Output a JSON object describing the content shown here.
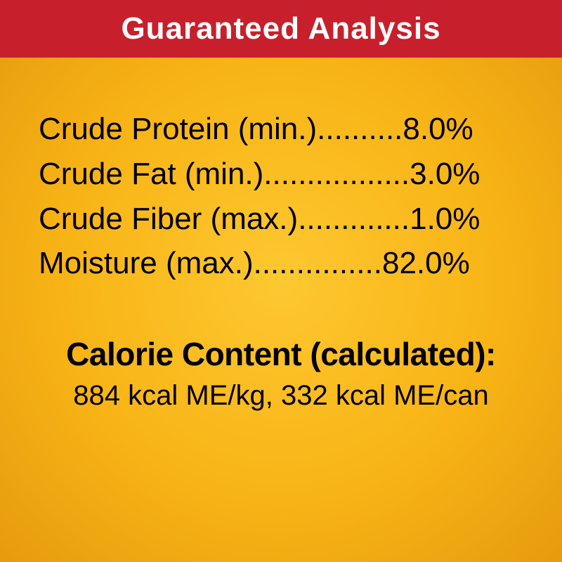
{
  "header": {
    "title": "Guaranteed Analysis",
    "background_color": "#c7202c",
    "text_color": "#ffffff",
    "fontsize": 44
  },
  "analysis": {
    "fontsize": 44,
    "text_color": "#000000",
    "rows": [
      {
        "label": "Crude Protein (min.)",
        "dots": "..........",
        "value": "8.0%"
      },
      {
        "label": "Crude Fat (min.)",
        "dots": ".................",
        "value": "3.0%"
      },
      {
        "label": "Crude Fiber (max.)",
        "dots": ".............",
        "value": "1.0%"
      },
      {
        "label": "Moisture (max.)",
        "dots": "...............",
        "value": "82.0%"
      }
    ]
  },
  "calorie": {
    "heading": "Calorie Content (calculated):",
    "heading_fontsize": 46,
    "line": "884 kcal ME/kg, 332 kcal ME/can",
    "line_fontsize": 40
  },
  "background": {
    "inner_color": "#fdc830",
    "outer_color": "#e69b0e"
  }
}
